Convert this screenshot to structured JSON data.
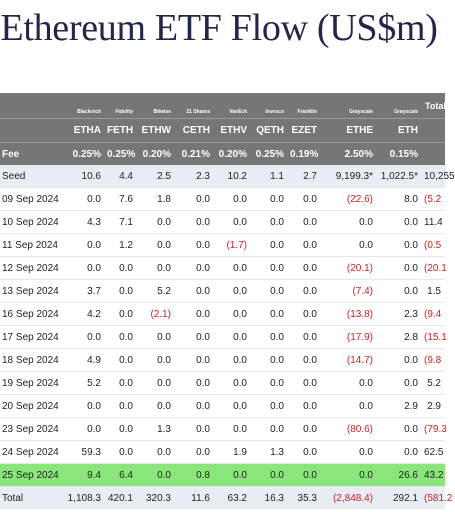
{
  "title": "Ethereum ETF Flow (US$m)",
  "colors": {
    "header_bg": "#767676",
    "highlight_row": "#8ae67a",
    "negative_text": "#cc2222",
    "seed_bg": "#e8ecf4"
  },
  "table": {
    "issuers": [
      "Blackrock",
      "Fidelity",
      "Bitwise",
      "21 Shares",
      "VanEck",
      "Invesco",
      "Franklin",
      "Grayscale",
      "Grayscale"
    ],
    "total_label": "Total",
    "tickers": [
      "ETHA",
      "FETH",
      "ETHW",
      "CETH",
      "ETHV",
      "QETH",
      "EZET",
      "ETHE",
      "ETH"
    ],
    "fee_label": "Fee",
    "fees": [
      "0.25%",
      "0.25%",
      "0.20%",
      "0.21%",
      "0.20%",
      "0.25%",
      "0.19%",
      "2.50%",
      "0.15%"
    ],
    "rows": [
      {
        "date": "Seed",
        "values": [
          "10.6",
          "4.4",
          "2.5",
          "2.3",
          "10.2",
          "1.1",
          "2.7",
          "9,199.3*",
          "1,022.5*"
        ],
        "total": "10,255"
      },
      {
        "date": "09 Sep 2024",
        "values": [
          "0.0",
          "7.6",
          "1.8",
          "0.0",
          "0.0",
          "0.0",
          "0.0",
          "(22.6)",
          "8.0"
        ],
        "total": "(5.2"
      },
      {
        "date": "10 Sep 2024",
        "values": [
          "4.3",
          "7.1",
          "0.0",
          "0.0",
          "0.0",
          "0.0",
          "0.0",
          "0.0",
          "0.0"
        ],
        "total": "11.4"
      },
      {
        "date": "11 Sep 2024",
        "values": [
          "0.0",
          "1.2",
          "0.0",
          "0.0",
          "(1.7)",
          "0.0",
          "0.0",
          "0.0",
          "0.0"
        ],
        "total": "(0.5"
      },
      {
        "date": "12 Sep 2024",
        "values": [
          "0.0",
          "0.0",
          "0.0",
          "0.0",
          "0.0",
          "0.0",
          "0.0",
          "(20.1)",
          "0.0"
        ],
        "total": "(20.1"
      },
      {
        "date": "13 Sep 2024",
        "values": [
          "3.7",
          "0.0",
          "5.2",
          "0.0",
          "0.0",
          "0.0",
          "0.0",
          "(7.4)",
          "0.0"
        ],
        "total": "1.5"
      },
      {
        "date": "16 Sep 2024",
        "values": [
          "4.2",
          "0.0",
          "(2.1)",
          "0.0",
          "0.0",
          "0.0",
          "0.0",
          "(13.8)",
          "2.3"
        ],
        "total": "(9.4"
      },
      {
        "date": "17 Sep 2024",
        "values": [
          "0.0",
          "0.0",
          "0.0",
          "0.0",
          "0.0",
          "0.0",
          "0.0",
          "(17.9)",
          "2.8"
        ],
        "total": "(15.1"
      },
      {
        "date": "18 Sep 2024",
        "values": [
          "4.9",
          "0.0",
          "0.0",
          "0.0",
          "0.0",
          "0.0",
          "0.0",
          "(14.7)",
          "0.0"
        ],
        "total": "(9.8"
      },
      {
        "date": "19 Sep 2024",
        "values": [
          "5.2",
          "0.0",
          "0.0",
          "0.0",
          "0.0",
          "0.0",
          "0.0",
          "0.0",
          "0.0"
        ],
        "total": "5.2"
      },
      {
        "date": "20 Sep 2024",
        "values": [
          "0.0",
          "0.0",
          "0.0",
          "0.0",
          "0.0",
          "0.0",
          "0.0",
          "0.0",
          "2.9"
        ],
        "total": "2.9"
      },
      {
        "date": "23 Sep 2024",
        "values": [
          "0.0",
          "0.0",
          "1.3",
          "0.0",
          "0.0",
          "0.0",
          "0.0",
          "(80.6)",
          "0.0"
        ],
        "total": "(79.3"
      },
      {
        "date": "24 Sep 2024",
        "values": [
          "59.3",
          "0.0",
          "0.0",
          "0.0",
          "1.9",
          "1.3",
          "0.0",
          "0.0",
          "0.0"
        ],
        "total": "62.5"
      },
      {
        "date": "25 Sep 2024",
        "values": [
          "9.4",
          "6.4",
          "0.0",
          "0.8",
          "0.0",
          "0.0",
          "0.0",
          "0.0",
          "26.6"
        ],
        "total": "43.2",
        "highlight": true
      }
    ],
    "totals": {
      "label": "Total",
      "values": [
        "1,108.3",
        "420.1",
        "320.3",
        "11.6",
        "63.2",
        "16.3",
        "35.3",
        "(2,848.4)",
        "292.1"
      ],
      "total": "(581.2"
    }
  }
}
